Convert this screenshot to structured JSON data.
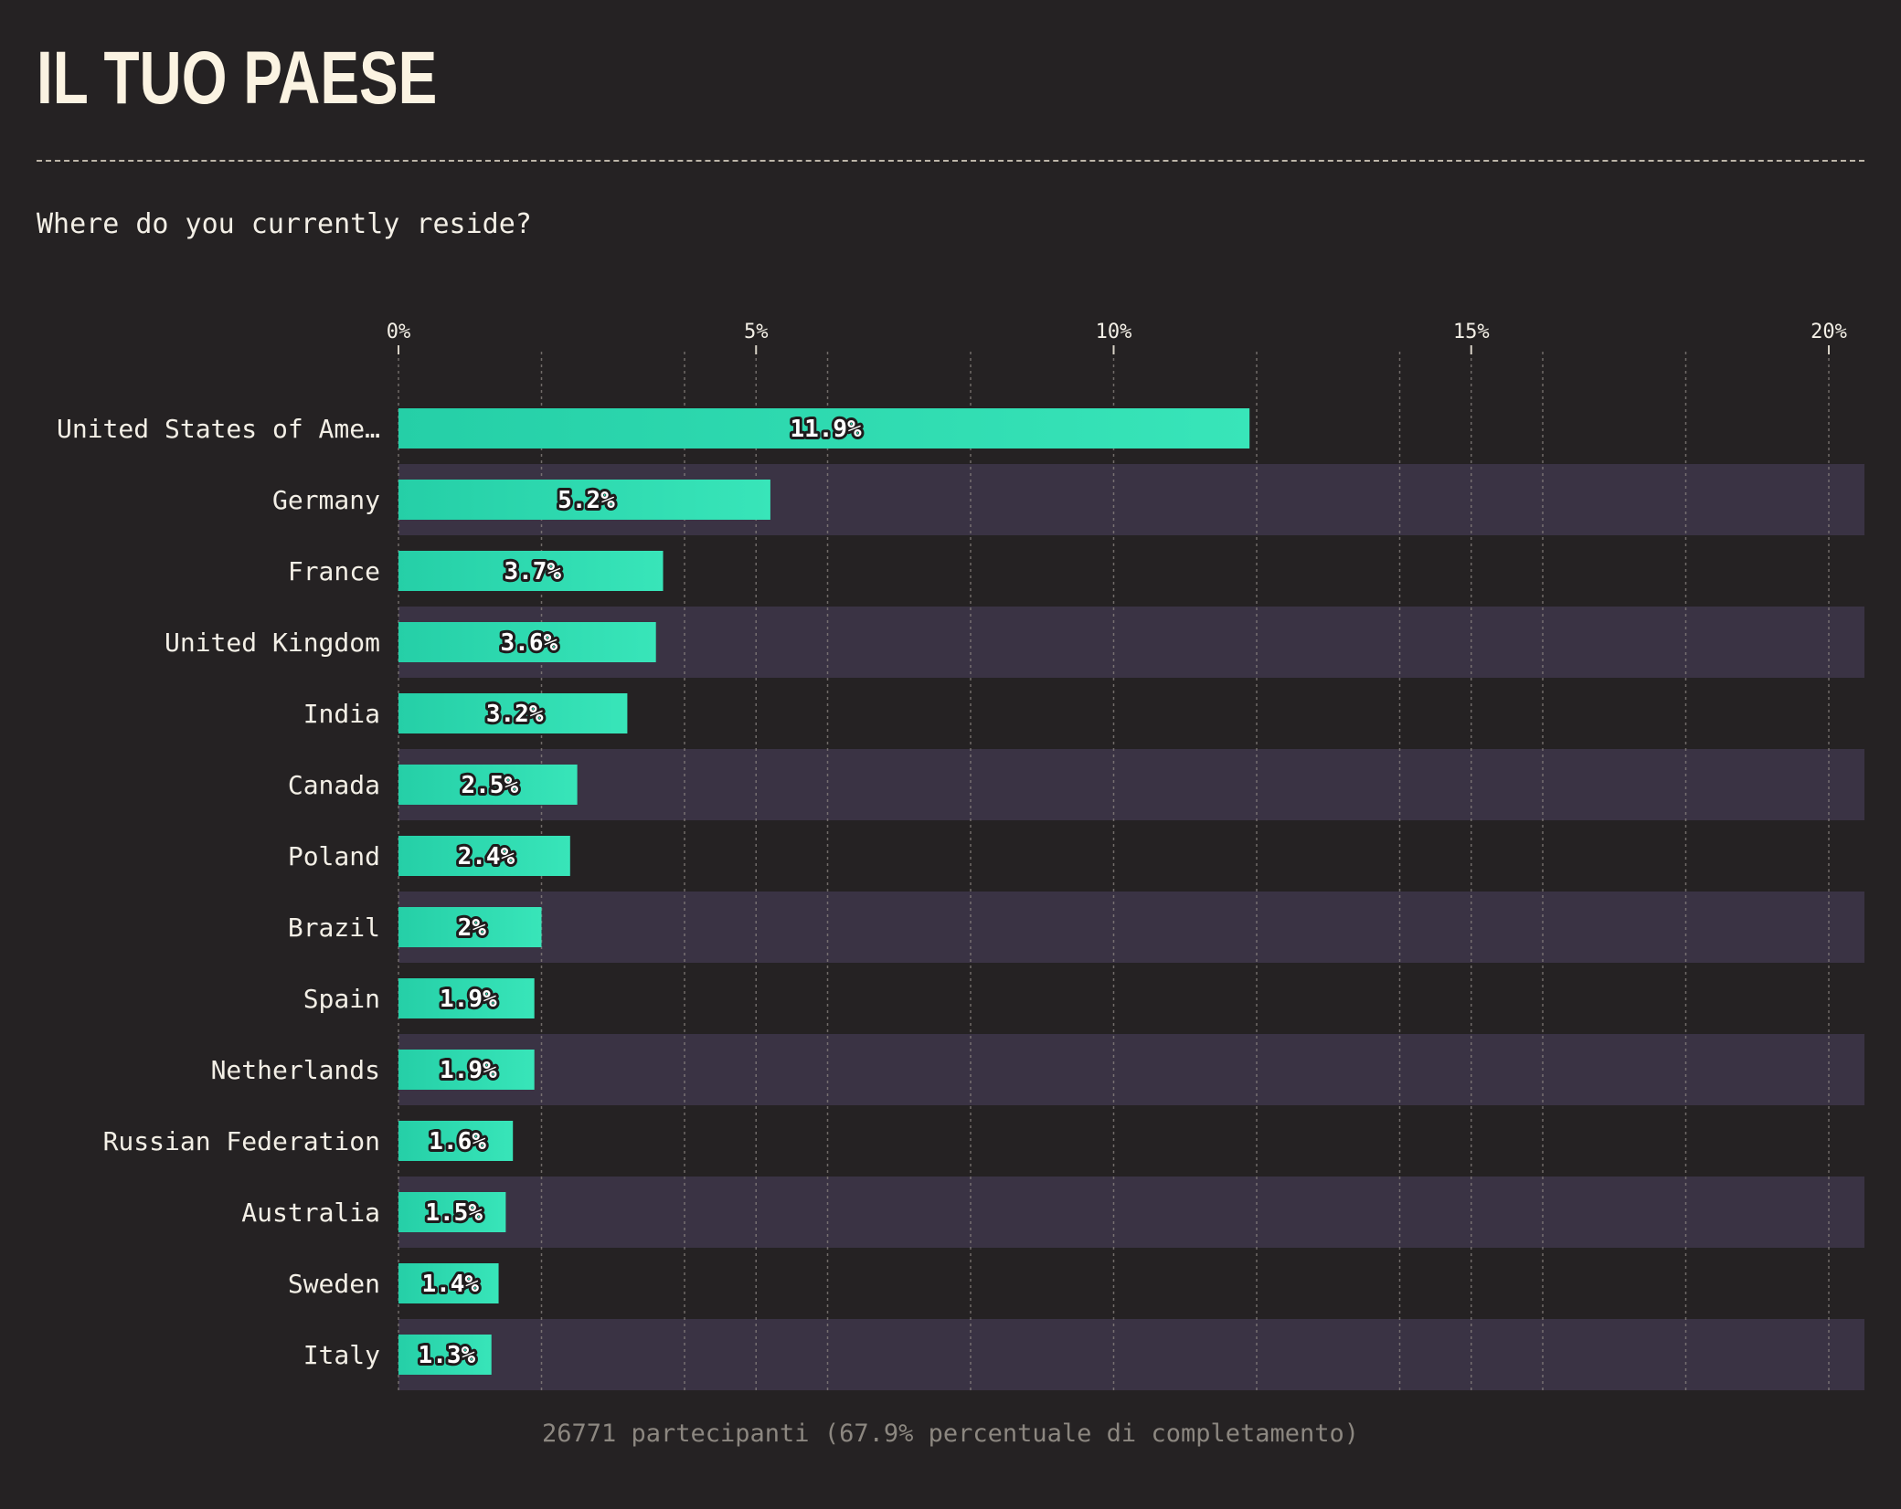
{
  "page": {
    "title": "IL TUO PAESE",
    "question": "Where do you currently reside?",
    "footer": "26771 partecipanti (67.9% percentuale di completamento)"
  },
  "colors": {
    "background": "#252223",
    "band": "#3a3344",
    "bar_start": "#25cfa7",
    "bar_end": "#38e5b9",
    "text": "#f3efe6",
    "muted": "#8c8780"
  },
  "chart_data": {
    "type": "bar",
    "orientation": "horizontal",
    "categories": [
      "United States of Ame…",
      "Germany",
      "France",
      "United Kingdom",
      "India",
      "Canada",
      "Poland",
      "Brazil",
      "Spain",
      "Netherlands",
      "Russian Federation",
      "Australia",
      "Sweden",
      "Italy"
    ],
    "values": [
      11.9,
      5.2,
      3.7,
      3.6,
      3.2,
      2.5,
      2.4,
      2,
      1.9,
      1.9,
      1.6,
      1.5,
      1.4,
      1.3
    ],
    "value_labels": [
      "11.9%",
      "5.2%",
      "3.7%",
      "3.6%",
      "3.2%",
      "2.5%",
      "2.4%",
      "2%",
      "1.9%",
      "1.9%",
      "1.6%",
      "1.5%",
      "1.4%",
      "1.3%"
    ],
    "xlim": [
      0,
      20.5
    ],
    "xticks": [
      0,
      5,
      10,
      15,
      20
    ],
    "xtick_labels": [
      "0%",
      "5%",
      "10%",
      "15%",
      "20%"
    ],
    "minor_gridlines": [
      2,
      4,
      6,
      8,
      12,
      14,
      16,
      18
    ],
    "grid": true,
    "axis_position": "top",
    "alternating_row_bands": true
  }
}
